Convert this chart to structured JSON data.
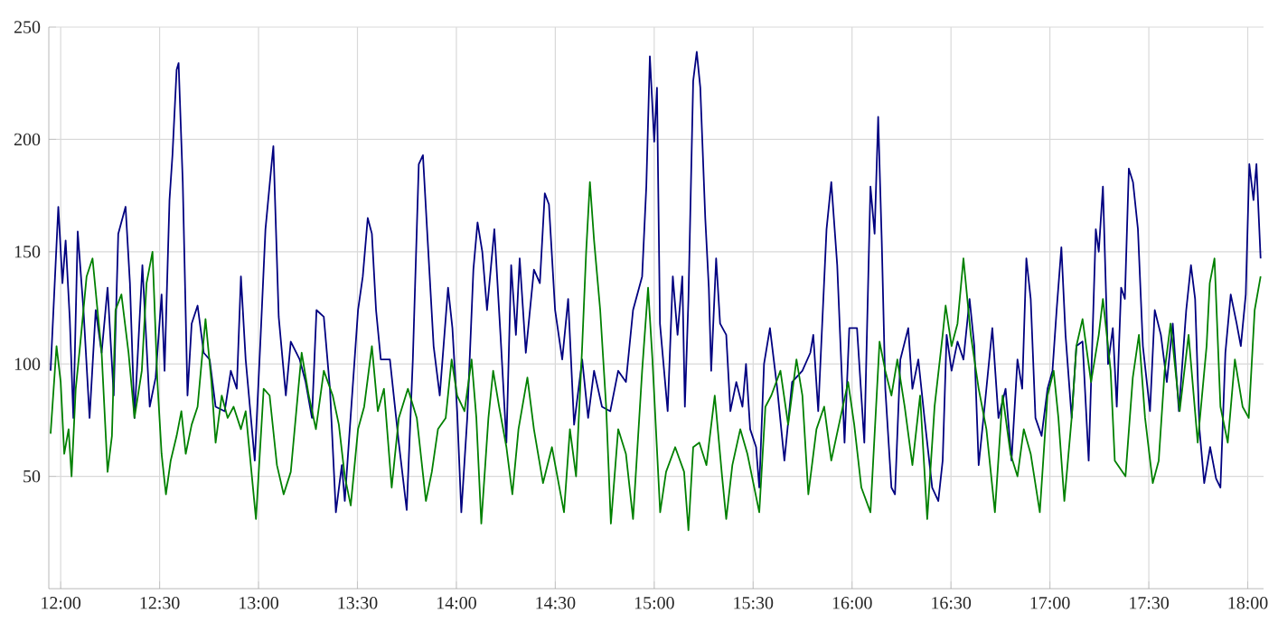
{
  "chart_data": {
    "type": "line",
    "xlim": [
      11.94,
      18.08
    ],
    "ylim": [
      0,
      250
    ],
    "xticks": [
      {
        "value": 12,
        "label": "12:00"
      },
      {
        "value": 12.5,
        "label": "12:30"
      },
      {
        "value": 13,
        "label": "13:00"
      },
      {
        "value": 13.5,
        "label": "13:30"
      },
      {
        "value": 14,
        "label": "14:00"
      },
      {
        "value": 14.5,
        "label": "14:30"
      },
      {
        "value": 15,
        "label": "15:00"
      },
      {
        "value": 15.5,
        "label": "15:30"
      },
      {
        "value": 16,
        "label": "16:00"
      },
      {
        "value": 16.5,
        "label": "16:30"
      },
      {
        "value": 17,
        "label": "17:00"
      },
      {
        "value": 17.5,
        "label": "17:30"
      },
      {
        "value": 18,
        "label": "18:00"
      }
    ],
    "yticks": [
      50,
      100,
      150,
      200,
      250
    ],
    "grid": true,
    "marker": "none",
    "line_style": "solid",
    "series": [
      {
        "color": "#000080",
        "x": [
          11.949,
          11.988,
          12.009,
          12.025,
          12.046,
          12.064,
          12.086,
          12.116,
          12.146,
          12.177,
          12.207,
          12.237,
          12.268,
          12.291,
          12.328,
          12.35,
          12.373,
          12.413,
          12.45,
          12.48,
          12.51,
          12.525,
          12.55,
          12.565,
          12.586,
          12.596,
          12.617,
          12.641,
          12.662,
          12.692,
          12.723,
          12.753,
          12.783,
          12.829,
          12.86,
          12.89,
          12.911,
          12.935,
          12.981,
          13.011,
          13.035,
          13.066,
          13.075,
          13.102,
          13.138,
          13.163,
          13.208,
          13.238,
          13.27,
          13.293,
          13.33,
          13.361,
          13.391,
          13.421,
          13.436,
          13.473,
          13.503,
          13.527,
          13.552,
          13.573,
          13.594,
          13.618,
          13.664,
          13.709,
          13.749,
          13.78,
          13.81,
          13.831,
          13.855,
          13.885,
          13.916,
          13.958,
          13.98,
          14.004,
          14.025,
          14.055,
          14.086,
          14.107,
          14.131,
          14.155,
          14.192,
          14.223,
          14.253,
          14.277,
          14.301,
          14.32,
          14.351,
          14.392,
          14.422,
          14.447,
          14.468,
          14.499,
          14.535,
          14.565,
          14.595,
          14.636,
          14.666,
          14.696,
          14.736,
          14.778,
          14.818,
          14.857,
          14.893,
          14.939,
          14.96,
          14.978,
          15.0,
          15.014,
          15.029,
          15.05,
          15.068,
          15.094,
          15.118,
          15.142,
          15.155,
          15.173,
          15.197,
          15.215,
          15.233,
          15.258,
          15.276,
          15.288,
          15.313,
          15.333,
          15.364,
          15.385,
          15.415,
          15.446,
          15.464,
          15.485,
          15.515,
          15.531,
          15.555,
          15.585,
          15.622,
          15.658,
          15.697,
          15.749,
          15.789,
          15.804,
          15.829,
          15.871,
          15.895,
          15.925,
          15.962,
          15.986,
          16.025,
          16.062,
          16.093,
          16.114,
          16.132,
          16.15,
          16.168,
          16.199,
          16.217,
          16.244,
          16.284,
          16.305,
          16.335,
          16.366,
          16.405,
          16.436,
          16.458,
          16.478,
          16.503,
          16.533,
          16.563,
          16.594,
          16.618,
          16.64,
          16.67,
          16.709,
          16.74,
          16.776,
          16.806,
          16.836,
          16.86,
          16.881,
          16.903,
          16.927,
          16.958,
          16.988,
          17.013,
          17.034,
          17.058,
          17.079,
          17.11,
          17.134,
          17.165,
          17.196,
          17.232,
          17.247,
          17.268,
          17.294,
          17.318,
          17.338,
          17.36,
          17.379,
          17.399,
          17.42,
          17.445,
          17.47,
          17.506,
          17.53,
          17.561,
          17.591,
          17.621,
          17.652,
          17.689,
          17.713,
          17.734,
          17.756,
          17.78,
          17.81,
          17.84,
          17.862,
          17.887,
          17.914,
          17.944,
          17.965,
          17.99,
          18.008,
          18.029,
          18.044,
          18.065
        ],
        "values": [
          97,
          170,
          136,
          155,
          120,
          76,
          159,
          123,
          76,
          124,
          105,
          134,
          86,
          158,
          170,
          136,
          76,
          144,
          81,
          94,
          131,
          97,
          173,
          193,
          231,
          234,
          181,
          86,
          118,
          126,
          105,
          102,
          81,
          79,
          97,
          89,
          139,
          102,
          57,
          113,
          160,
          189,
          197,
          121,
          86,
          110,
          102,
          92,
          76,
          124,
          121,
          89,
          34,
          55,
          39,
          86,
          124,
          139,
          165,
          158,
          124,
          102,
          102,
          65,
          35,
          102,
          189,
          193,
          155,
          108,
          86,
          134,
          116,
          79,
          34,
          76,
          142,
          163,
          150,
          124,
          160,
          113,
          65,
          144,
          113,
          147,
          105,
          142,
          136,
          176,
          171,
          124,
          102,
          129,
          73,
          102,
          76,
          97,
          81,
          79,
          97,
          92,
          124,
          139,
          179,
          237,
          199,
          223,
          118,
          97,
          79,
          139,
          113,
          139,
          81,
          129,
          226,
          239,
          223,
          165,
          134,
          97,
          147,
          118,
          113,
          79,
          92,
          81,
          100,
          71,
          63,
          45,
          100,
          116,
          89,
          57,
          92,
          97,
          105,
          113,
          79,
          160,
          181,
          144,
          65,
          116,
          116,
          65,
          179,
          158,
          210,
          155,
          89,
          45,
          42,
          102,
          116,
          89,
          102,
          76,
          45,
          39,
          57,
          113,
          97,
          110,
          102,
          129,
          108,
          55,
          81,
          116,
          76,
          89,
          57,
          102,
          89,
          147,
          129,
          76,
          68,
          89,
          97,
          124,
          152,
          113,
          76,
          108,
          110,
          57,
          160,
          150,
          179,
          100,
          116,
          81,
          134,
          129,
          187,
          181,
          160,
          108,
          79,
          124,
          113,
          92,
          118,
          79,
          124,
          144,
          129,
          71,
          47,
          63,
          49,
          45,
          105,
          131,
          118,
          108,
          131,
          189,
          173,
          189,
          147
        ]
      },
      {
        "color": "#008000",
        "x": [
          11.949,
          11.979,
          12.0,
          12.018,
          12.04,
          12.055,
          12.076,
          12.1,
          12.131,
          12.161,
          12.186,
          12.207,
          12.237,
          12.259,
          12.277,
          12.307,
          12.343,
          12.373,
          12.41,
          12.434,
          12.464,
          12.489,
          12.51,
          12.532,
          12.556,
          12.586,
          12.61,
          12.632,
          12.662,
          12.692,
          12.732,
          12.762,
          12.783,
          12.814,
          12.844,
          12.874,
          12.911,
          12.935,
          12.987,
          13.026,
          13.056,
          13.093,
          13.127,
          13.163,
          13.193,
          13.218,
          13.254,
          13.29,
          13.33,
          13.375,
          13.406,
          13.436,
          13.466,
          13.503,
          13.534,
          13.573,
          13.603,
          13.634,
          13.673,
          13.709,
          13.755,
          13.8,
          13.846,
          13.876,
          13.907,
          13.946,
          13.976,
          14.004,
          14.041,
          14.077,
          14.101,
          14.126,
          14.162,
          14.186,
          14.216,
          14.253,
          14.283,
          14.314,
          14.359,
          14.392,
          14.438,
          14.483,
          14.544,
          14.574,
          14.605,
          14.636,
          14.656,
          14.675,
          14.696,
          14.727,
          14.757,
          14.781,
          14.818,
          14.857,
          14.893,
          14.939,
          14.969,
          14.991,
          15.03,
          15.06,
          15.106,
          15.151,
          15.173,
          15.197,
          15.228,
          15.264,
          15.306,
          15.343,
          15.364,
          15.395,
          15.435,
          15.471,
          15.531,
          15.562,
          15.592,
          15.638,
          15.677,
          15.719,
          15.749,
          15.779,
          15.82,
          15.859,
          15.895,
          15.941,
          15.98,
          16.011,
          16.047,
          16.093,
          16.139,
          16.168,
          16.199,
          16.229,
          16.266,
          16.305,
          16.344,
          16.38,
          16.417,
          16.458,
          16.473,
          16.503,
          16.533,
          16.563,
          16.6,
          16.64,
          16.679,
          16.722,
          16.761,
          16.801,
          16.836,
          16.868,
          16.903,
          16.949,
          16.988,
          17.019,
          17.043,
          17.073,
          17.11,
          17.134,
          17.165,
          17.208,
          17.247,
          17.268,
          17.307,
          17.328,
          17.382,
          17.419,
          17.45,
          17.481,
          17.52,
          17.55,
          17.58,
          17.61,
          17.656,
          17.701,
          17.747,
          17.792,
          17.808,
          17.832,
          17.862,
          17.899,
          17.935,
          17.974,
          18.005,
          18.035,
          18.065
        ],
        "values": [
          69,
          108,
          92,
          60,
          71,
          50,
          89,
          110,
          139,
          147,
          124,
          105,
          52,
          68,
          124,
          131,
          105,
          76,
          97,
          136,
          150,
          92,
          60,
          42,
          57,
          68,
          79,
          60,
          73,
          81,
          120,
          92,
          65,
          86,
          76,
          81,
          71,
          79,
          31,
          89,
          86,
          55,
          42,
          52,
          81,
          105,
          86,
          71,
          97,
          86,
          73,
          50,
          37,
          71,
          81,
          108,
          79,
          89,
          45,
          76,
          89,
          76,
          39,
          52,
          71,
          76,
          102,
          86,
          79,
          102,
          76,
          29,
          76,
          97,
          81,
          63,
          42,
          71,
          94,
          71,
          47,
          63,
          34,
          71,
          50,
          108,
          150,
          181,
          155,
          124,
          81,
          29,
          71,
          60,
          31,
          97,
          134,
          102,
          34,
          52,
          63,
          52,
          26,
          63,
          65,
          55,
          86,
          50,
          31,
          55,
          71,
          60,
          34,
          81,
          86,
          97,
          73,
          102,
          86,
          42,
          71,
          81,
          57,
          76,
          92,
          73,
          45,
          34,
          110,
          97,
          86,
          102,
          81,
          55,
          86,
          31,
          81,
          113,
          126,
          108,
          118,
          147,
          113,
          89,
          71,
          34,
          86,
          60,
          50,
          71,
          60,
          34,
          86,
          97,
          76,
          39,
          76,
          108,
          120,
          92,
          113,
          129,
          97,
          57,
          50,
          94,
          113,
          76,
          47,
          57,
          97,
          118,
          79,
          113,
          65,
          108,
          136,
          147,
          81,
          65,
          102,
          81,
          76,
          124,
          139
        ]
      }
    ]
  }
}
